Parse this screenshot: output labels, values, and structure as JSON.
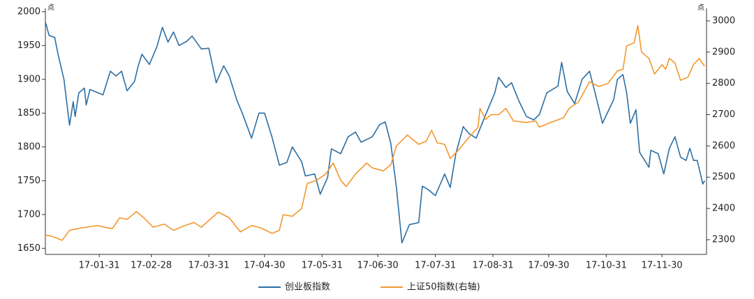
{
  "chart_data": {
    "type": "line",
    "y_unit": "点",
    "y2_unit": "点",
    "xlim": [
      "17-01-02",
      "17-12-24"
    ],
    "xticks": [
      "17-01-31",
      "17-02-28",
      "17-03-31",
      "17-04-30",
      "17-05-31",
      "17-06-30",
      "17-07-31",
      "17-08-31",
      "17-09-30",
      "17-10-31",
      "17-11-30"
    ],
    "ylim": [
      1641,
      2005
    ],
    "yticks": [
      1650,
      1700,
      1750,
      1800,
      1850,
      1900,
      1950,
      2000
    ],
    "y2lim": [
      2253,
      3040
    ],
    "y2ticks": [
      2300,
      2400,
      2500,
      2600,
      2700,
      2800,
      2900,
      3000
    ],
    "series": [
      {
        "name": "创业板指数",
        "color": "#2b6ea3",
        "axis": "y",
        "x": [
          "17-01-02",
          "17-01-04",
          "17-01-07",
          "17-01-09",
          "17-01-12",
          "17-01-15",
          "17-01-17",
          "17-01-18",
          "17-01-20",
          "17-01-23",
          "17-01-24",
          "17-01-26",
          "17-02-02",
          "17-02-06",
          "17-02-09",
          "17-02-12",
          "17-02-15",
          "17-02-19",
          "17-02-21",
          "17-02-23",
          "17-02-27",
          "17-03-03",
          "17-03-06",
          "17-03-09",
          "17-03-12",
          "17-03-15",
          "17-03-19",
          "17-03-22",
          "17-03-27",
          "17-03-31",
          "17-04-04",
          "17-04-08",
          "17-04-11",
          "17-04-15",
          "17-04-18",
          "17-04-23",
          "17-04-27",
          "17-04-30",
          "17-05-04",
          "17-05-08",
          "17-05-12",
          "17-05-15",
          "17-05-20",
          "17-05-22",
          "17-05-27",
          "17-05-30",
          "17-06-03",
          "17-06-05",
          "17-06-10",
          "17-06-14",
          "17-06-18",
          "17-06-21",
          "17-06-27",
          "17-07-01",
          "17-07-04",
          "17-07-07",
          "17-07-10",
          "17-07-13",
          "17-07-17",
          "17-07-22",
          "17-07-24",
          "17-07-27",
          "17-07-31",
          "17-08-05",
          "17-08-08",
          "17-08-11",
          "17-08-15",
          "17-08-18",
          "17-08-22",
          "17-08-27",
          "17-09-01",
          "17-09-03",
          "17-09-07",
          "17-09-10",
          "17-09-14",
          "17-09-18",
          "17-09-22",
          "17-09-25",
          "17-09-29",
          "17-10-05",
          "17-10-07",
          "17-10-10",
          "17-10-14",
          "17-10-18",
          "17-10-22",
          "17-10-25",
          "17-10-29",
          "17-11-04",
          "17-11-06",
          "17-11-09",
          "17-11-11",
          "17-11-13",
          "17-11-16",
          "17-11-18",
          "17-11-23",
          "17-11-24",
          "17-11-28",
          "17-12-01",
          "17-12-04",
          "17-12-07",
          "17-12-10",
          "17-12-13",
          "17-12-15",
          "17-12-17",
          "17-12-19",
          "17-12-22",
          "17-12-23"
        ],
        "values": [
          1985,
          1965,
          1962,
          1935,
          1900,
          1832,
          1867,
          1845,
          1880,
          1887,
          1862,
          1885,
          1877,
          1912,
          1905,
          1912,
          1883,
          1897,
          1920,
          1937,
          1922,
          1948,
          1977,
          1955,
          1970,
          1950,
          1956,
          1964,
          1945,
          1946,
          1895,
          1920,
          1905,
          1870,
          1850,
          1813,
          1850,
          1850,
          1815,
          1773,
          1777,
          1800,
          1778,
          1757,
          1760,
          1730,
          1755,
          1797,
          1790,
          1815,
          1822,
          1807,
          1815,
          1833,
          1837,
          1805,
          1740,
          1658,
          1685,
          1688,
          1742,
          1737,
          1728,
          1760,
          1740,
          1790,
          1830,
          1820,
          1813,
          1847,
          1880,
          1903,
          1888,
          1895,
          1868,
          1845,
          1840,
          1848,
          1880,
          1890,
          1925,
          1882,
          1864,
          1900,
          1912,
          1880,
          1835,
          1870,
          1900,
          1907,
          1880,
          1835,
          1855,
          1792,
          1770,
          1795,
          1790,
          1760,
          1798,
          1815,
          1785,
          1780,
          1798,
          1780,
          1780,
          1745,
          1750
        ]
      },
      {
        "name": "上证50指数(右轴)",
        "color": "#f2972e",
        "axis": "y2",
        "x": [
          "17-01-02",
          "17-01-06",
          "17-01-11",
          "17-01-15",
          "17-01-19",
          "17-01-24",
          "17-01-30",
          "17-02-07",
          "17-02-11",
          "17-02-15",
          "17-02-20",
          "17-02-24",
          "17-03-01",
          "17-03-07",
          "17-03-12",
          "17-03-18",
          "17-03-23",
          "17-03-27",
          "17-04-05",
          "17-04-11",
          "17-04-17",
          "17-04-23",
          "17-04-28",
          "17-05-04",
          "17-05-08",
          "17-05-10",
          "17-05-15",
          "17-05-20",
          "17-05-23",
          "17-05-28",
          "17-06-02",
          "17-06-06",
          "17-06-10",
          "17-06-13",
          "17-06-18",
          "17-06-24",
          "17-06-27",
          "17-07-03",
          "17-07-07",
          "17-07-10",
          "17-07-16",
          "17-07-22",
          "17-07-26",
          "17-07-29",
          "17-08-01",
          "17-08-05",
          "17-08-08",
          "17-08-13",
          "17-08-17",
          "17-08-23",
          "17-08-24",
          "17-08-27",
          "17-08-30",
          "17-09-03",
          "17-09-07",
          "17-09-11",
          "17-09-18",
          "17-09-23",
          "17-09-25",
          "17-10-01",
          "17-10-08",
          "17-10-11",
          "17-10-16",
          "17-10-22",
          "17-10-27",
          "17-11-01",
          "17-11-06",
          "17-11-09",
          "17-11-11",
          "17-11-15",
          "17-11-17",
          "17-11-19",
          "17-11-23",
          "17-11-26",
          "17-11-30",
          "17-12-02",
          "17-12-04",
          "17-12-07",
          "17-12-10",
          "17-12-14",
          "17-12-17",
          "17-12-20",
          "17-12-23"
        ],
        "values": [
          2315,
          2310,
          2298,
          2330,
          2335,
          2340,
          2345,
          2335,
          2370,
          2365,
          2390,
          2370,
          2340,
          2350,
          2330,
          2345,
          2355,
          2340,
          2388,
          2370,
          2325,
          2345,
          2338,
          2320,
          2330,
          2380,
          2375,
          2400,
          2480,
          2490,
          2510,
          2545,
          2490,
          2470,
          2510,
          2545,
          2530,
          2520,
          2540,
          2600,
          2635,
          2605,
          2615,
          2650,
          2610,
          2605,
          2560,
          2590,
          2620,
          2660,
          2720,
          2685,
          2700,
          2700,
          2720,
          2680,
          2675,
          2680,
          2660,
          2675,
          2690,
          2720,
          2740,
          2805,
          2790,
          2800,
          2840,
          2845,
          2920,
          2930,
          2985,
          2900,
          2880,
          2830,
          2860,
          2845,
          2880,
          2865,
          2810,
          2820,
          2860,
          2880,
          2855
        ]
      }
    ]
  }
}
